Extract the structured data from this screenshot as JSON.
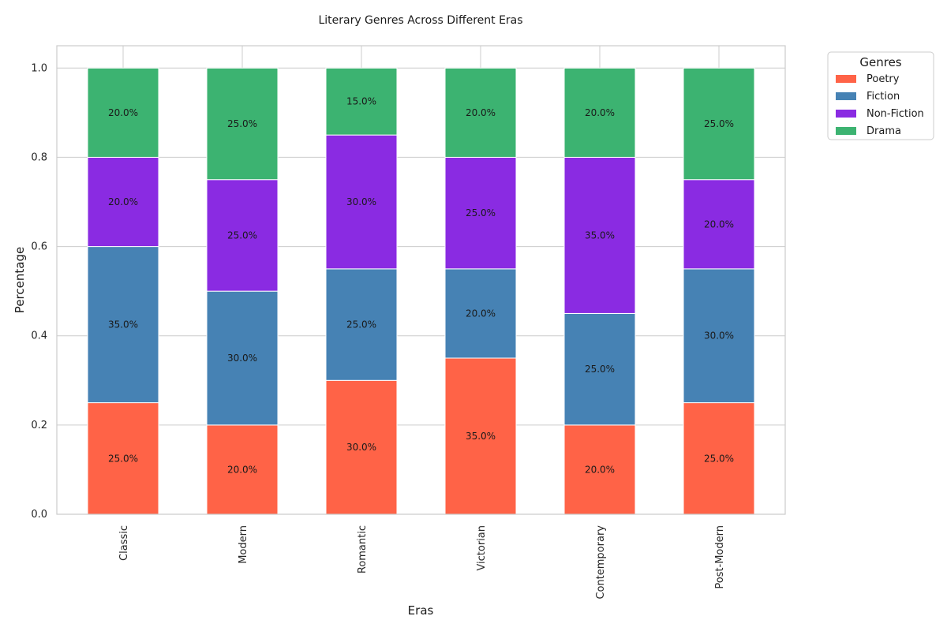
{
  "chart_data": {
    "type": "bar",
    "stacked": true,
    "title": "Literary Genres Across Different Eras",
    "xlabel": "Eras",
    "ylabel": "Percentage",
    "ylim": [
      0,
      1.05
    ],
    "yticks": [
      "0.0",
      "0.2",
      "0.4",
      "0.6",
      "0.8",
      "1.0"
    ],
    "categories": [
      "Classic",
      "Modern",
      "Romantic",
      "Victorian",
      "Contemporary",
      "Post-Modern"
    ],
    "series": [
      {
        "name": "Poetry",
        "color": "#ff6347",
        "values": [
          0.25,
          0.2,
          0.3,
          0.35,
          0.2,
          0.25
        ]
      },
      {
        "name": "Fiction",
        "color": "#4682b4",
        "values": [
          0.35,
          0.3,
          0.25,
          0.2,
          0.25,
          0.3
        ]
      },
      {
        "name": "Non-Fiction",
        "color": "#8a2be2",
        "values": [
          0.2,
          0.25,
          0.3,
          0.25,
          0.35,
          0.2
        ]
      },
      {
        "name": "Drama",
        "color": "#3cb371",
        "values": [
          0.2,
          0.25,
          0.15,
          0.2,
          0.2,
          0.25
        ]
      }
    ],
    "data_labels": [
      [
        "25.0%",
        "20.0%",
        "30.0%",
        "35.0%",
        "20.0%",
        "25.0%"
      ],
      [
        "35.0%",
        "30.0%",
        "25.0%",
        "20.0%",
        "25.0%",
        "30.0%"
      ],
      [
        "20.0%",
        "25.0%",
        "30.0%",
        "25.0%",
        "35.0%",
        "20.0%"
      ],
      [
        "20.0%",
        "25.0%",
        "15.0%",
        "20.0%",
        "20.0%",
        "25.0%"
      ]
    ],
    "legend": {
      "title": "Genres",
      "position": "outside-top-right"
    },
    "grid": true
  }
}
